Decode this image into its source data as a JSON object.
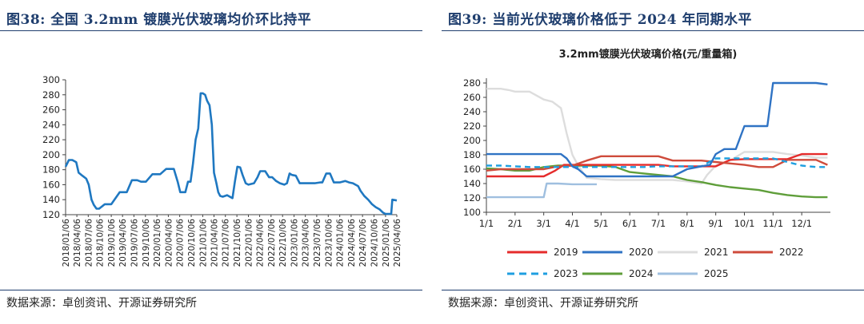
{
  "left_panel": {
    "figure_title": "图38:  全国 3.2mm 镀膜光伏玻璃均价环比持平",
    "source": "数据来源：卓创资讯、开源证券研究所"
  },
  "right_panel": {
    "figure_title": "图39:  当前光伏玻璃价格低于 2024 年同期水平",
    "source": "数据来源：卓创资讯、开源证券研究所"
  },
  "chart_data": [
    {
      "type": "line",
      "title": "",
      "xlabel": "",
      "ylabel": "",
      "ylim": [
        120,
        300
      ],
      "yticks": [
        120,
        140,
        160,
        180,
        200,
        220,
        240,
        260,
        280,
        300
      ],
      "x_range": [
        "2018-01-06",
        "2025-04-06"
      ],
      "xticks": [
        "2018/01/06",
        "2018/04/06",
        "2018/07/06",
        "2018/10/06",
        "2019/01/06",
        "2019/04/06",
        "2019/07/06",
        "2019/10/06",
        "2020/01/06",
        "2020/04/06",
        "2020/07/06",
        "2020/10/06",
        "2021/01/06",
        "2021/04/06",
        "2021/07/06",
        "2021/10/06",
        "2022/01/06",
        "2022/04/06",
        "2022/07/06",
        "2022/10/06",
        "2023/01/06",
        "2023/04/06",
        "2023/07/06",
        "2023/10/06",
        "2024/01/06",
        "2024/04/06",
        "2024/07/06",
        "2024/10/06",
        "2025/01/06",
        "2025/04/06"
      ],
      "grid": false,
      "color": "#1f78c1",
      "series": [
        {
          "x": [
            "2018-01-06",
            "2018-02-01",
            "2018-03-01",
            "2018-04-01",
            "2018-04-20",
            "2018-05-20",
            "2018-06-20",
            "2018-07-10",
            "2018-08-01",
            "2018-08-20",
            "2018-09-10",
            "2018-10-01",
            "2018-11-15",
            "2018-12-10",
            "2019-01-06",
            "2019-03-15",
            "2019-04-01",
            "2019-05-10",
            "2019-06-20",
            "2019-08-01",
            "2019-09-01",
            "2019-10-10",
            "2019-12-01",
            "2020-02-01",
            "2020-03-20",
            "2020-04-10",
            "2020-05-20",
            "2020-06-20",
            "2020-07-10",
            "2020-08-01",
            "2020-08-20",
            "2020-09-10",
            "2020-10-01",
            "2020-10-20",
            "2020-11-10",
            "2020-12-01",
            "2020-12-20",
            "2021-01-06",
            "2021-01-25",
            "2021-02-10",
            "2021-03-01",
            "2021-03-20",
            "2021-04-06",
            "2021-04-25",
            "2021-05-10",
            "2021-05-25",
            "2021-06-15",
            "2021-07-20",
            "2021-09-01",
            "2021-09-20",
            "2021-10-10",
            "2021-11-01",
            "2021-11-20",
            "2021-12-15",
            "2022-01-06",
            "2022-02-20",
            "2022-03-20",
            "2022-04-10",
            "2022-05-20",
            "2022-06-20",
            "2022-07-15",
            "2022-08-15",
            "2022-09-15",
            "2022-10-20",
            "2022-11-10",
            "2022-12-01",
            "2022-12-20",
            "2023-01-20",
            "2023-02-20",
            "2023-04-01",
            "2023-05-10",
            "2023-06-20",
            "2023-08-01",
            "2023-08-20",
            "2023-09-20",
            "2023-10-20",
            "2023-11-20",
            "2024-01-06",
            "2024-02-20",
            "2024-03-20",
            "2024-04-20",
            "2024-06-01",
            "2024-06-20",
            "2024-07-20",
            "2024-08-20",
            "2024-09-20",
            "2024-10-20",
            "2024-11-20",
            "2024-12-15",
            "2025-01-06",
            "2025-02-01",
            "2025-02-20",
            "2025-03-01",
            "2025-04-06"
          ],
          "y": [
            184,
            193,
            193,
            190,
            176,
            172,
            168,
            160,
            140,
            133,
            128,
            128,
            134,
            134,
            134,
            150,
            150,
            150,
            166,
            166,
            164,
            164,
            174,
            174,
            181,
            181,
            181,
            164,
            150,
            150,
            150,
            164,
            164,
            188,
            220,
            235,
            282,
            282,
            280,
            272,
            266,
            240,
            176,
            162,
            150,
            145,
            144,
            146,
            142,
            164,
            184,
            183,
            173,
            162,
            160,
            162,
            170,
            178,
            178,
            170,
            170,
            165,
            162,
            160,
            162,
            175,
            173,
            172,
            162,
            162,
            162,
            162,
            163,
            163,
            175,
            175,
            163,
            163,
            165,
            163,
            162,
            158,
            152,
            145,
            140,
            134,
            130,
            127,
            123,
            121,
            121,
            121,
            140,
            139
          ]
        }
      ]
    },
    {
      "type": "line",
      "title": "3.2mm镀膜光伏玻璃价格(元/重量箱)",
      "xlabel": "",
      "ylabel": "",
      "ylim": [
        100,
        280
      ],
      "yticks": [
        100,
        120,
        140,
        160,
        180,
        200,
        220,
        240,
        260,
        280
      ],
      "x_domain": [
        1,
        13
      ],
      "xticks": [
        "1/1",
        "2/1",
        "3/1",
        "4/1",
        "5/1",
        "6/1",
        "7/1",
        "8/1",
        "9/1",
        "10/1",
        "11/1",
        "12/1"
      ],
      "grid": false,
      "legend_position": "bottom",
      "series": [
        {
          "name": "2019",
          "color": "#e52b2b",
          "dash": "solid",
          "x": [
            1.0,
            1.5,
            2.0,
            2.5,
            3.0,
            3.4,
            3.7,
            4.0,
            4.6,
            5.0,
            5.6,
            6.0,
            6.5,
            7.0,
            7.5,
            8.0,
            8.5,
            9.0,
            9.5,
            10.0,
            10.5,
            11.0,
            11.5,
            12.0,
            12.5,
            12.9
          ],
          "y": [
            150,
            150,
            150,
            150,
            150,
            158,
            166,
            166,
            166,
            166,
            166,
            166,
            166,
            166,
            164,
            164,
            164,
            164,
            173,
            174,
            174,
            174,
            174,
            181,
            181,
            181
          ]
        },
        {
          "name": "2020",
          "color": "#2f73c4",
          "dash": "solid",
          "x": [
            1.0,
            1.5,
            2.0,
            2.5,
            3.0,
            3.6,
            3.8,
            4.0,
            4.2,
            4.5,
            5.0,
            5.5,
            6.0,
            6.5,
            7.0,
            7.5,
            8.0,
            8.5,
            8.8,
            9.0,
            9.3,
            9.7,
            10.0,
            10.5,
            10.8,
            11.0,
            11.5,
            12.0,
            12.5,
            12.9
          ],
          "y": [
            181,
            181,
            181,
            181,
            181,
            181,
            175,
            164,
            160,
            150,
            150,
            150,
            150,
            150,
            150,
            150,
            160,
            164,
            166,
            181,
            188,
            188,
            220,
            220,
            220,
            280,
            280,
            280,
            280,
            278
          ]
        },
        {
          "name": "2021",
          "color": "#dddddd",
          "dash": "solid",
          "x": [
            1.0,
            1.5,
            1.8,
            2.0,
            2.5,
            3.0,
            3.3,
            3.6,
            3.8,
            4.0,
            4.2,
            4.5,
            5.0,
            5.5,
            6.0,
            6.5,
            7.0,
            7.5,
            8.0,
            8.5,
            8.7,
            9.0,
            9.5,
            10.0,
            10.5,
            11.0,
            11.5,
            12.0,
            12.5,
            12.9
          ],
          "y": [
            272,
            272,
            270,
            268,
            268,
            257,
            254,
            245,
            210,
            180,
            165,
            148,
            146,
            145,
            145,
            145,
            145,
            145,
            143,
            140,
            152,
            165,
            172,
            184,
            184,
            184,
            181,
            179,
            176,
            176
          ]
        },
        {
          "name": "2022",
          "color": "#cf4b3b",
          "dash": "solid",
          "x": [
            1.0,
            1.5,
            2.0,
            2.5,
            3.0,
            3.5,
            4.0,
            4.5,
            5.0,
            5.5,
            6.0,
            6.5,
            7.0,
            7.5,
            8.0,
            8.5,
            9.0,
            9.5,
            10.0,
            10.5,
            11.0,
            11.5,
            12.0,
            12.5,
            12.9
          ],
          "y": [
            158,
            160,
            160,
            160,
            160,
            164,
            165,
            172,
            178,
            178,
            178,
            178,
            178,
            172,
            172,
            172,
            170,
            168,
            166,
            163,
            163,
            173,
            173,
            173,
            166
          ]
        },
        {
          "name": "2023",
          "color": "#1f9fe0",
          "dash": "dashed",
          "x": [
            1.0,
            1.5,
            2.0,
            2.5,
            3.0,
            3.5,
            4.0,
            4.5,
            5.0,
            5.5,
            6.0,
            6.5,
            7.0,
            7.5,
            8.0,
            8.5,
            9.0,
            9.5,
            10.0,
            10.5,
            11.0,
            11.5,
            12.0,
            12.5,
            12.9
          ],
          "y": [
            165,
            165,
            164,
            163,
            163,
            163,
            163,
            163,
            163,
            163,
            163,
            163,
            164,
            164,
            164,
            164,
            175,
            175,
            175,
            175,
            175,
            170,
            165,
            163,
            163
          ]
        },
        {
          "name": "2024",
          "color": "#5f9e3a",
          "dash": "solid",
          "x": [
            1.0,
            1.5,
            2.0,
            2.5,
            3.0,
            3.5,
            4.0,
            4.5,
            5.0,
            5.5,
            6.0,
            6.5,
            7.0,
            7.5,
            8.0,
            8.5,
            9.0,
            9.5,
            10.0,
            10.5,
            11.0,
            11.5,
            12.0,
            12.5,
            12.9
          ],
          "y": [
            161,
            160,
            158,
            158,
            163,
            165,
            165,
            165,
            165,
            163,
            156,
            154,
            152,
            150,
            145,
            142,
            138,
            135,
            133,
            131,
            127,
            124,
            122,
            121,
            121
          ]
        },
        {
          "name": "2025",
          "color": "#9fbfdf",
          "dash": "solid",
          "x": [
            1.0,
            1.5,
            2.0,
            2.5,
            3.0,
            3.1,
            3.5,
            4.0,
            4.5,
            4.85
          ],
          "y": [
            121,
            121,
            121,
            121,
            121,
            140,
            140,
            139,
            139,
            139
          ]
        }
      ]
    }
  ]
}
